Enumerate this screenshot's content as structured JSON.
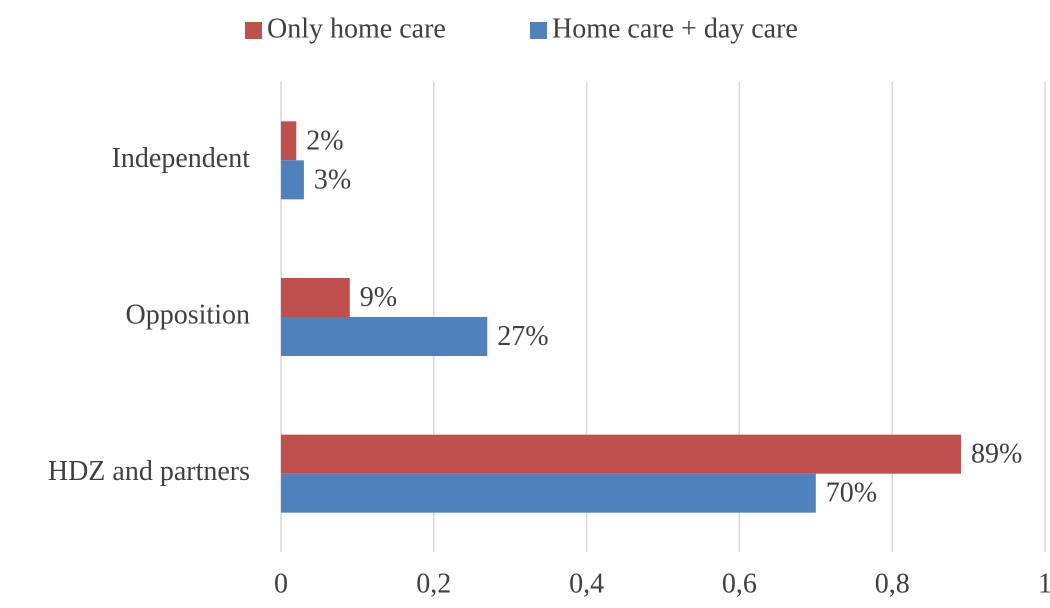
{
  "chart_data": {
    "type": "hbar",
    "categories": [
      "Independent",
      "Opposition",
      "HDZ and partners"
    ],
    "series": [
      {
        "name": "Only home care",
        "color": "#c0504d",
        "values": [
          0.02,
          0.09,
          0.89
        ],
        "value_labels": [
          "2%",
          "9%",
          "89%"
        ]
      },
      {
        "name": "Home care + day care",
        "color": "#4f81bd",
        "values": [
          0.03,
          0.27,
          0.7
        ],
        "value_labels": [
          "3%",
          "27%",
          "70%"
        ]
      }
    ],
    "xlim": [
      0,
      1
    ],
    "xticks": [
      0,
      {
        "value": 0.2,
        "label": "0,2"
      },
      {
        "value": 0.4,
        "label": "0,4"
      },
      {
        "value": 0.6,
        "label": "0,6"
      },
      {
        "value": 0.8,
        "label": "0,8"
      },
      1
    ],
    "grid": true,
    "legend": "top"
  }
}
